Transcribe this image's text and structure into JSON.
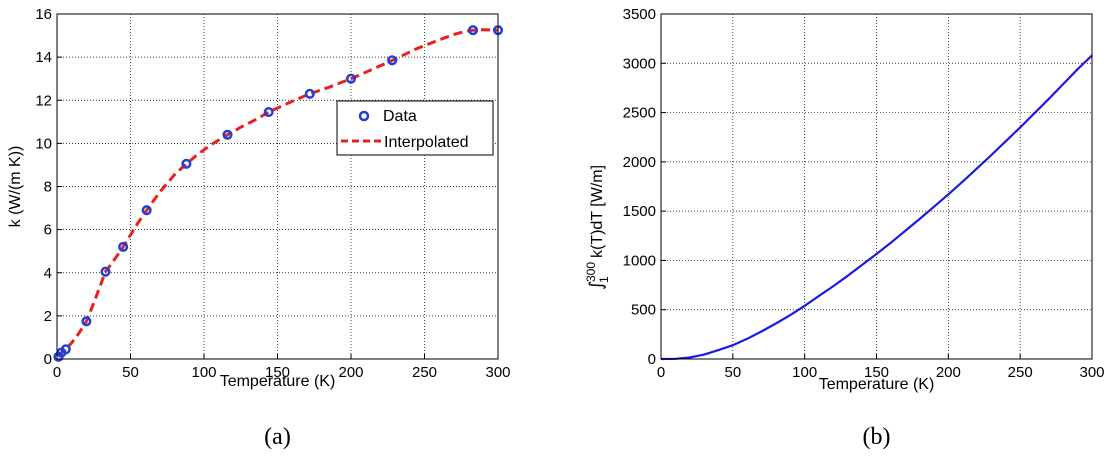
{
  "chart_data": [
    {
      "panel": "a",
      "caption": "(a)",
      "type": "line",
      "xlabel": "Temperature (K)",
      "ylabel": "k (W/(m K))",
      "xlim": [
        0,
        300
      ],
      "ylim": [
        0,
        16
      ],
      "xticks": [
        0,
        50,
        100,
        150,
        200,
        250,
        300
      ],
      "yticks": [
        0,
        2,
        4,
        6,
        8,
        10,
        12,
        14,
        16
      ],
      "grid": true,
      "legend_position": "upper-right",
      "series": [
        {
          "name": "Data",
          "style": "markers",
          "color": "#1f3fd6",
          "points": [
            [
              1,
              0.1
            ],
            [
              3,
              0.3
            ],
            [
              6,
              0.45
            ],
            [
              20,
              1.75
            ],
            [
              33,
              4.05
            ],
            [
              45,
              5.2
            ],
            [
              61,
              6.9
            ],
            [
              88,
              9.05
            ],
            [
              116,
              10.4
            ],
            [
              144,
              11.45
            ],
            [
              172,
              12.3
            ],
            [
              200,
              13.0
            ],
            [
              228,
              13.85
            ],
            [
              283,
              15.25
            ],
            [
              300,
              15.25
            ]
          ]
        },
        {
          "name": "Interpolated",
          "style": "dashed",
          "color": "#e8201f",
          "points": [
            [
              1,
              0.1
            ],
            [
              3,
              0.3
            ],
            [
              6,
              0.45
            ],
            [
              10,
              0.75
            ],
            [
              15,
              1.2
            ],
            [
              20,
              1.75
            ],
            [
              25,
              2.6
            ],
            [
              30,
              3.5
            ],
            [
              33,
              4.05
            ],
            [
              40,
              4.7
            ],
            [
              45,
              5.2
            ],
            [
              50,
              5.75
            ],
            [
              55,
              6.3
            ],
            [
              61,
              6.9
            ],
            [
              70,
              7.75
            ],
            [
              80,
              8.55
            ],
            [
              88,
              9.05
            ],
            [
              95,
              9.45
            ],
            [
              105,
              9.95
            ],
            [
              116,
              10.4
            ],
            [
              125,
              10.75
            ],
            [
              135,
              11.1
            ],
            [
              144,
              11.45
            ],
            [
              155,
              11.8
            ],
            [
              165,
              12.1
            ],
            [
              172,
              12.3
            ],
            [
              185,
              12.6
            ],
            [
              200,
              13.0
            ],
            [
              215,
              13.45
            ],
            [
              228,
              13.85
            ],
            [
              245,
              14.4
            ],
            [
              260,
              14.8
            ],
            [
              270,
              15.05
            ],
            [
              278,
              15.2
            ],
            [
              283,
              15.25
            ],
            [
              290,
              15.27
            ],
            [
              300,
              15.25
            ]
          ]
        }
      ]
    },
    {
      "panel": "b",
      "caption": "(b)",
      "type": "line",
      "xlabel": "Temperature (K)",
      "ylabel_integral_sign": "∫",
      "ylabel_upper_limit": "300",
      "ylabel_lower_limit": "1",
      "ylabel_body": "k(T)dT [W/m]",
      "xlim": [
        0,
        300
      ],
      "ylim": [
        0,
        3500
      ],
      "xticks": [
        0,
        50,
        100,
        150,
        200,
        250,
        300
      ],
      "yticks": [
        0,
        500,
        1000,
        1500,
        2000,
        2500,
        3000,
        3500
      ],
      "grid": true,
      "series": [
        {
          "style": "solid",
          "color": "#1a1ae6",
          "points": [
            [
              0,
              0
            ],
            [
              10,
              2
            ],
            [
              20,
              15
            ],
            [
              30,
              45
            ],
            [
              40,
              90
            ],
            [
              50,
              140
            ],
            [
              60,
              205
            ],
            [
              70,
              280
            ],
            [
              80,
              360
            ],
            [
              90,
              445
            ],
            [
              100,
              540
            ],
            [
              110,
              640
            ],
            [
              120,
              740
            ],
            [
              130,
              845
            ],
            [
              140,
              955
            ],
            [
              150,
              1065
            ],
            [
              160,
              1180
            ],
            [
              170,
              1300
            ],
            [
              180,
              1420
            ],
            [
              190,
              1545
            ],
            [
              200,
              1670
            ],
            [
              210,
              1800
            ],
            [
              220,
              1935
            ],
            [
              230,
              2070
            ],
            [
              240,
              2210
            ],
            [
              250,
              2350
            ],
            [
              260,
              2495
            ],
            [
              270,
              2640
            ],
            [
              280,
              2790
            ],
            [
              290,
              2940
            ],
            [
              300,
              3080
            ]
          ]
        }
      ]
    }
  ]
}
